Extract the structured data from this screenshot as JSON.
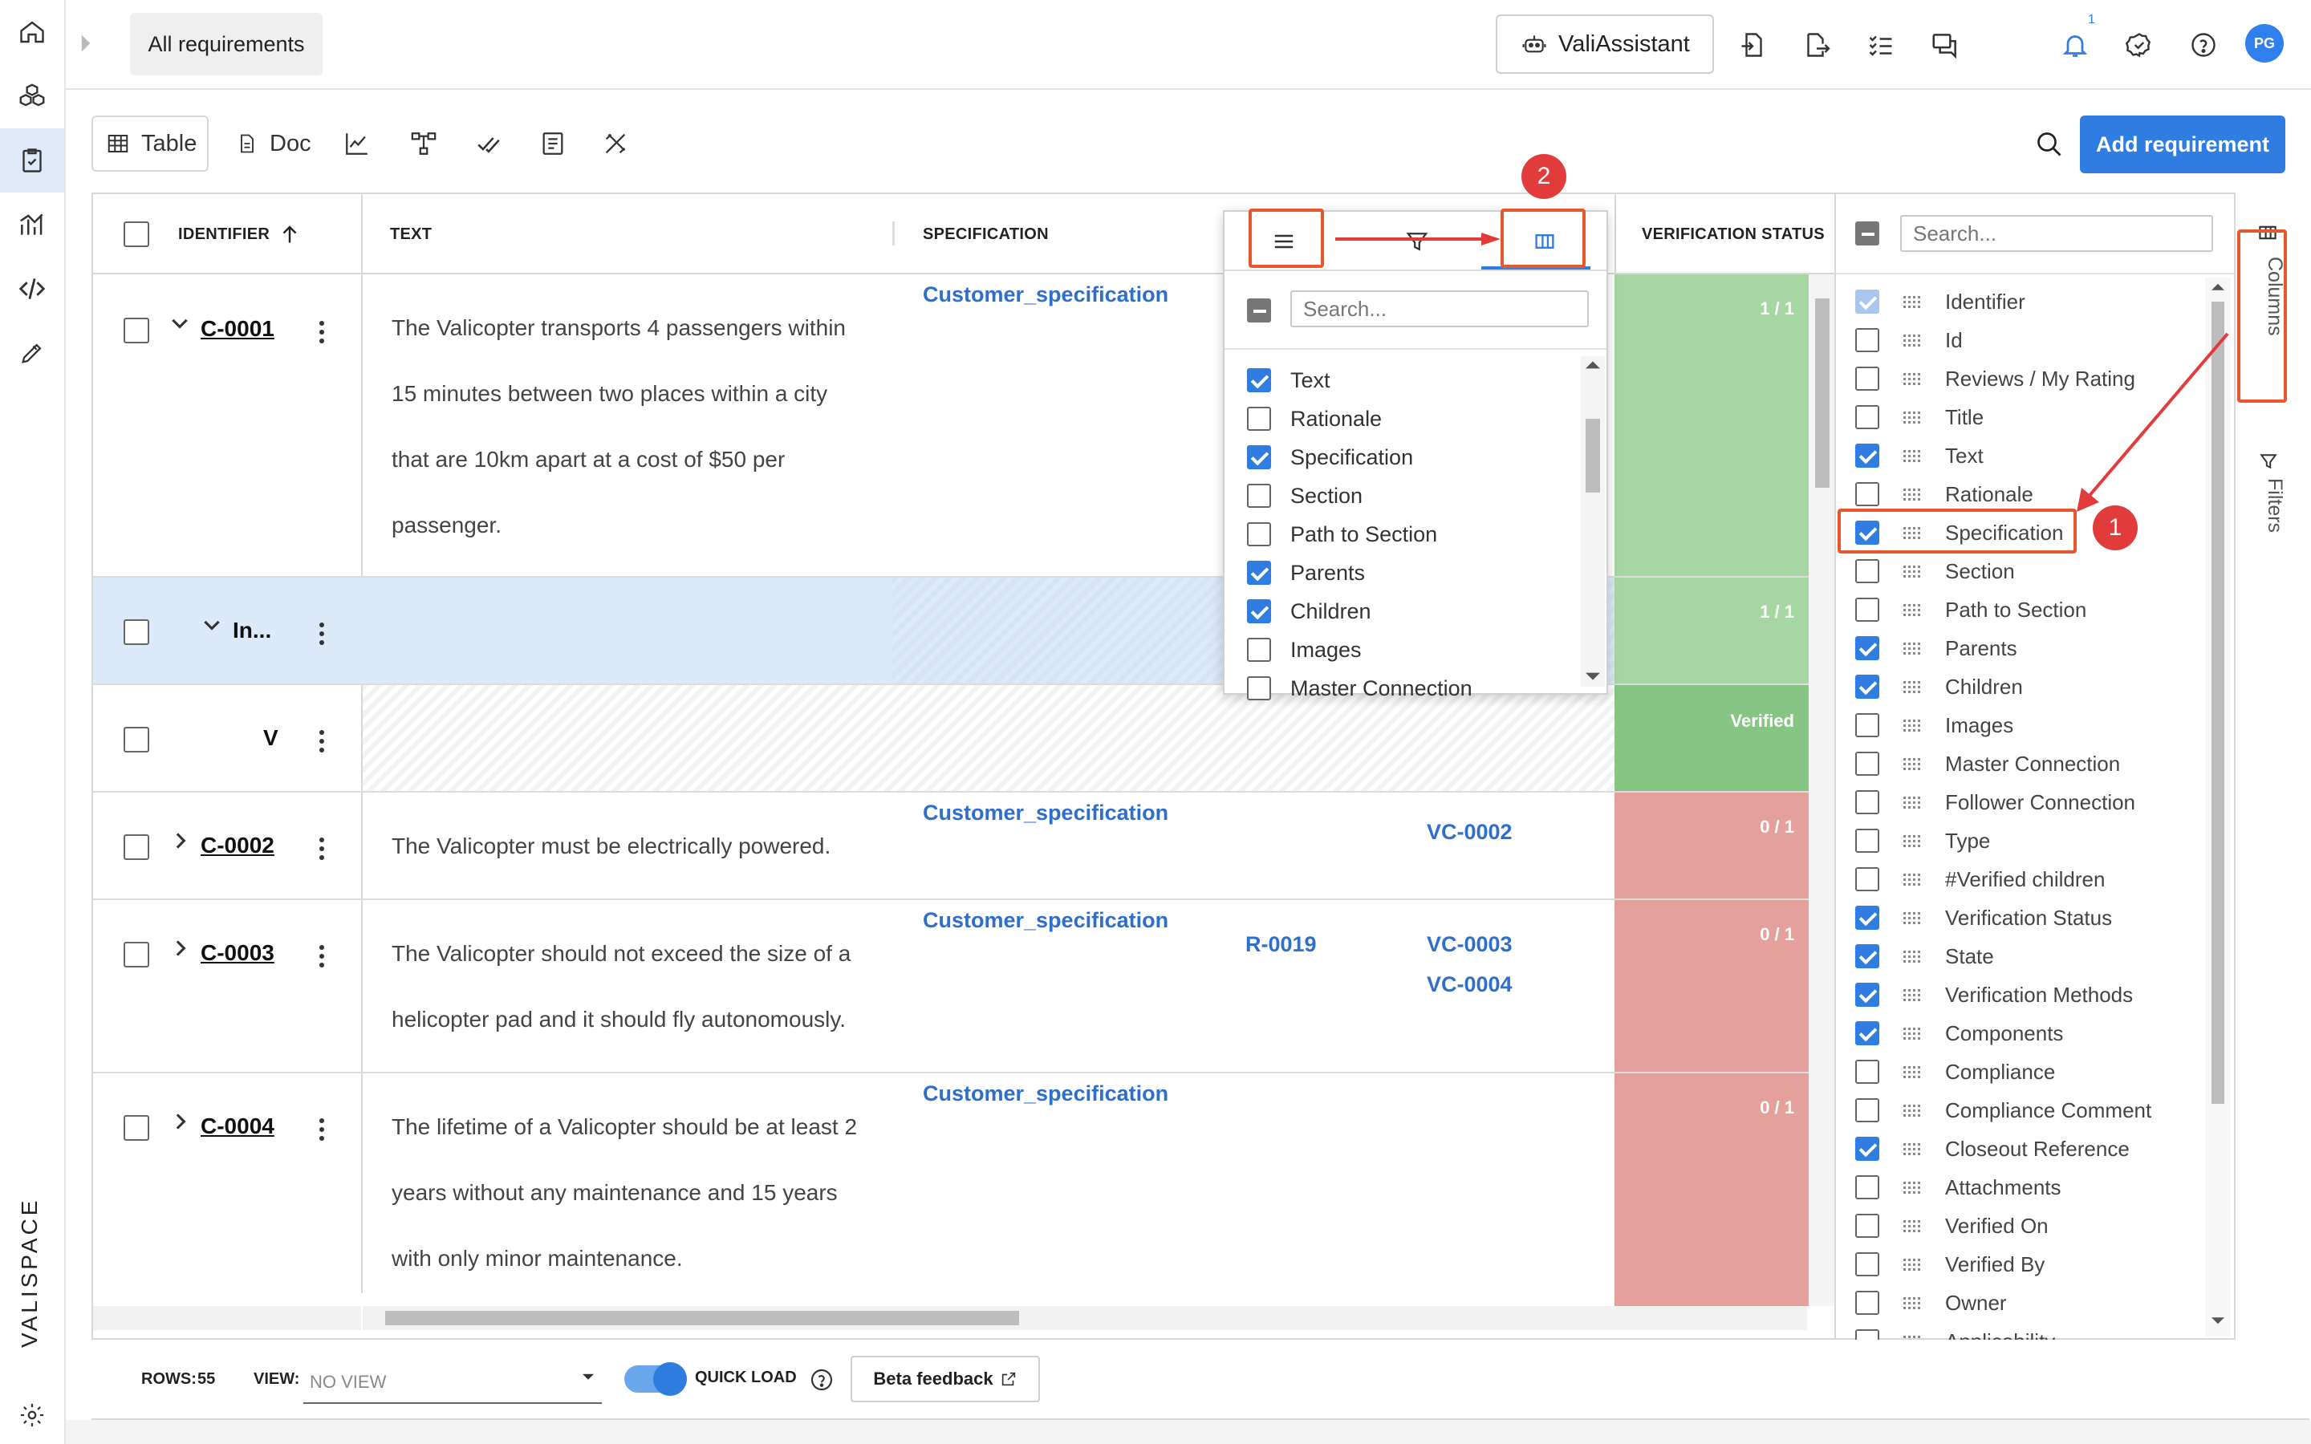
{
  "topbar": {
    "breadcrumb": "All requirements",
    "assistant_label": "ValiAssistant",
    "notification_count": "1",
    "avatar_initials": "PG"
  },
  "toolbar": {
    "table_label": "Table",
    "doc_label": "Doc",
    "add_button": "Add requirement"
  },
  "table": {
    "headers": {
      "identifier": "IDENTIFIER",
      "text": "TEXT",
      "specification": "SPECIFICATION",
      "verification_status": "VERIFICATION STATUS"
    },
    "rows": [
      {
        "id": "C-0001",
        "text_lines": [
          "The Valicopter transports 4 passengers within",
          "15 minutes between two places within a city",
          "that are 10km apart at a cost of $50 per",
          "passenger."
        ],
        "specification": "Customer_specification",
        "status": "1 / 1"
      },
      {
        "id": "In...",
        "status": "1 / 1"
      },
      {
        "id": "V",
        "status": "Verified"
      },
      {
        "id": "C-0002",
        "text_lines": [
          "The Valicopter must be electrically powered."
        ],
        "specification": "Customer_specification",
        "children": [
          "VC-0002"
        ],
        "status": "0 / 1"
      },
      {
        "id": "C-0003",
        "text_lines": [
          "The Valicopter should not exceed the size of a",
          "helicopter pad and it should fly autonomously."
        ],
        "specification": "Customer_specification",
        "parents": [
          "R-0019"
        ],
        "children": [
          "VC-0003",
          "VC-0004"
        ],
        "status": "0 / 1"
      },
      {
        "id": "C-0004",
        "text_lines": [
          "The lifetime of a Valicopter should be at least 2",
          "years without any maintenance and 15 years",
          "with only minor maintenance."
        ],
        "specification": "Customer_specification",
        "status": "0 / 1"
      }
    ]
  },
  "column_popup": {
    "search_placeholder": "Search...",
    "items": [
      {
        "label": "Text",
        "checked": true
      },
      {
        "label": "Rationale",
        "checked": false
      },
      {
        "label": "Specification",
        "checked": true
      },
      {
        "label": "Section",
        "checked": false
      },
      {
        "label": "Path to Section",
        "checked": false
      },
      {
        "label": "Parents",
        "checked": true
      },
      {
        "label": "Children",
        "checked": true
      },
      {
        "label": "Images",
        "checked": false
      },
      {
        "label": "Master Connection",
        "checked": false
      }
    ]
  },
  "side_panel": {
    "search_placeholder": "Search...",
    "items": [
      {
        "label": "Identifier",
        "checked": true,
        "disabled": true
      },
      {
        "label": "Id",
        "checked": false
      },
      {
        "label": "Reviews / My Rating",
        "checked": false
      },
      {
        "label": "Title",
        "checked": false
      },
      {
        "label": "Text",
        "checked": true
      },
      {
        "label": "Rationale",
        "checked": false
      },
      {
        "label": "Specification",
        "checked": true
      },
      {
        "label": "Section",
        "checked": false
      },
      {
        "label": "Path to Section",
        "checked": false
      },
      {
        "label": "Parents",
        "checked": true
      },
      {
        "label": "Children",
        "checked": true
      },
      {
        "label": "Images",
        "checked": false
      },
      {
        "label": "Master Connection",
        "checked": false
      },
      {
        "label": "Follower Connection",
        "checked": false
      },
      {
        "label": "Type",
        "checked": false
      },
      {
        "label": "#Verified children",
        "checked": false
      },
      {
        "label": "Verification Status",
        "checked": true
      },
      {
        "label": "State",
        "checked": true
      },
      {
        "label": "Verification Methods",
        "checked": true
      },
      {
        "label": "Components",
        "checked": true
      },
      {
        "label": "Compliance",
        "checked": false
      },
      {
        "label": "Compliance Comment",
        "checked": false
      },
      {
        "label": "Closeout Reference",
        "checked": true
      },
      {
        "label": "Attachments",
        "checked": false
      },
      {
        "label": "Verified On",
        "checked": false
      },
      {
        "label": "Verified By",
        "checked": false
      },
      {
        "label": "Owner",
        "checked": false
      },
      {
        "label": "Applicability",
        "checked": false
      }
    ],
    "tab_columns": "Columns",
    "tab_filters": "Filters"
  },
  "bottombar": {
    "rows_label": "ROWS:",
    "rows_value": "55",
    "view_label": "VIEW:",
    "view_value": "NO VIEW",
    "quick_load": "QUICK LOAD",
    "beta_feedback": "Beta feedback"
  },
  "annotations": {
    "badge_1": "1",
    "badge_2": "2"
  },
  "brand": {
    "logo_text": "VALISPACE",
    "accent": "#2f7de1",
    "status_green": "#a6d6a2",
    "status_green_dark": "#86c584",
    "status_red": "#e4a09a",
    "annotation_red": "#e23b3b"
  }
}
